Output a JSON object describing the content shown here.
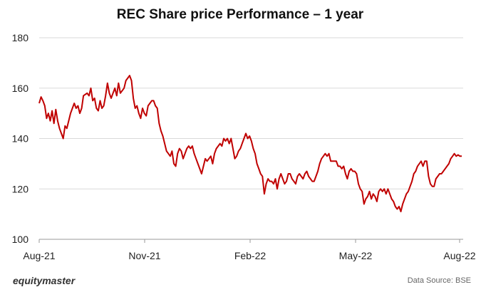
{
  "chart_data": {
    "type": "line",
    "title": "REC Share price Performance – 1 year",
    "x_tick_labels": [
      "Aug-21",
      "Nov-21",
      "Feb-22",
      "May-22",
      "Aug-22"
    ],
    "y_ticks": [
      100,
      120,
      140,
      160,
      180
    ],
    "ylim": [
      100,
      180
    ],
    "grid": "horizontal",
    "line_color": "#c00000",
    "series": [
      {
        "values": [
          154,
          156.5,
          155,
          153,
          148,
          150,
          147,
          151,
          146,
          151.5,
          147,
          144,
          142,
          140,
          145,
          144,
          147,
          150,
          152,
          154,
          152,
          153,
          150,
          152,
          157,
          157.5,
          158,
          157,
          160,
          155,
          156,
          152,
          151,
          155,
          152,
          153,
          157,
          162,
          158,
          156,
          158,
          160,
          157,
          162,
          158,
          159,
          160,
          163,
          164,
          165,
          163,
          156,
          152,
          153,
          150,
          148,
          152,
          150,
          149,
          153,
          154,
          155,
          155,
          153,
          152,
          146,
          143,
          141,
          138,
          135,
          134,
          133,
          135,
          130,
          129,
          134,
          136,
          135,
          132,
          134,
          136,
          137,
          136,
          137,
          134,
          132,
          130,
          128,
          126,
          129,
          132,
          131,
          132,
          133,
          130,
          134,
          136,
          137,
          138,
          137,
          140,
          139,
          140,
          138,
          140,
          136,
          132,
          133,
          135,
          136,
          138,
          140,
          142,
          140,
          141,
          139,
          136,
          134,
          130,
          128,
          126,
          125,
          118,
          122,
          124,
          123,
          123,
          122,
          124,
          120,
          124,
          126,
          124,
          122,
          123,
          126,
          126,
          124,
          123,
          122,
          125,
          126,
          125,
          124,
          126,
          127,
          125,
          124,
          123,
          123,
          125,
          127,
          130,
          132,
          133,
          134,
          133,
          134,
          131,
          131,
          131,
          131,
          129,
          129,
          128,
          129,
          126,
          124,
          127,
          128,
          127,
          127,
          126,
          122,
          120,
          119,
          114,
          116,
          117,
          119,
          116,
          118,
          117,
          115,
          119,
          120,
          119,
          120,
          118,
          120,
          118,
          116,
          115,
          113,
          112,
          113,
          111,
          114,
          116,
          118,
          119,
          121,
          123,
          126,
          127,
          129,
          130,
          131,
          129,
          131,
          131,
          125,
          122,
          121,
          121,
          124,
          125,
          126,
          126,
          127,
          128,
          129,
          130,
          132,
          133,
          134,
          133,
          133.5,
          133,
          133
        ]
      }
    ]
  },
  "footer": {
    "brand": "equitymaster",
    "source": "Data Source: BSE"
  }
}
